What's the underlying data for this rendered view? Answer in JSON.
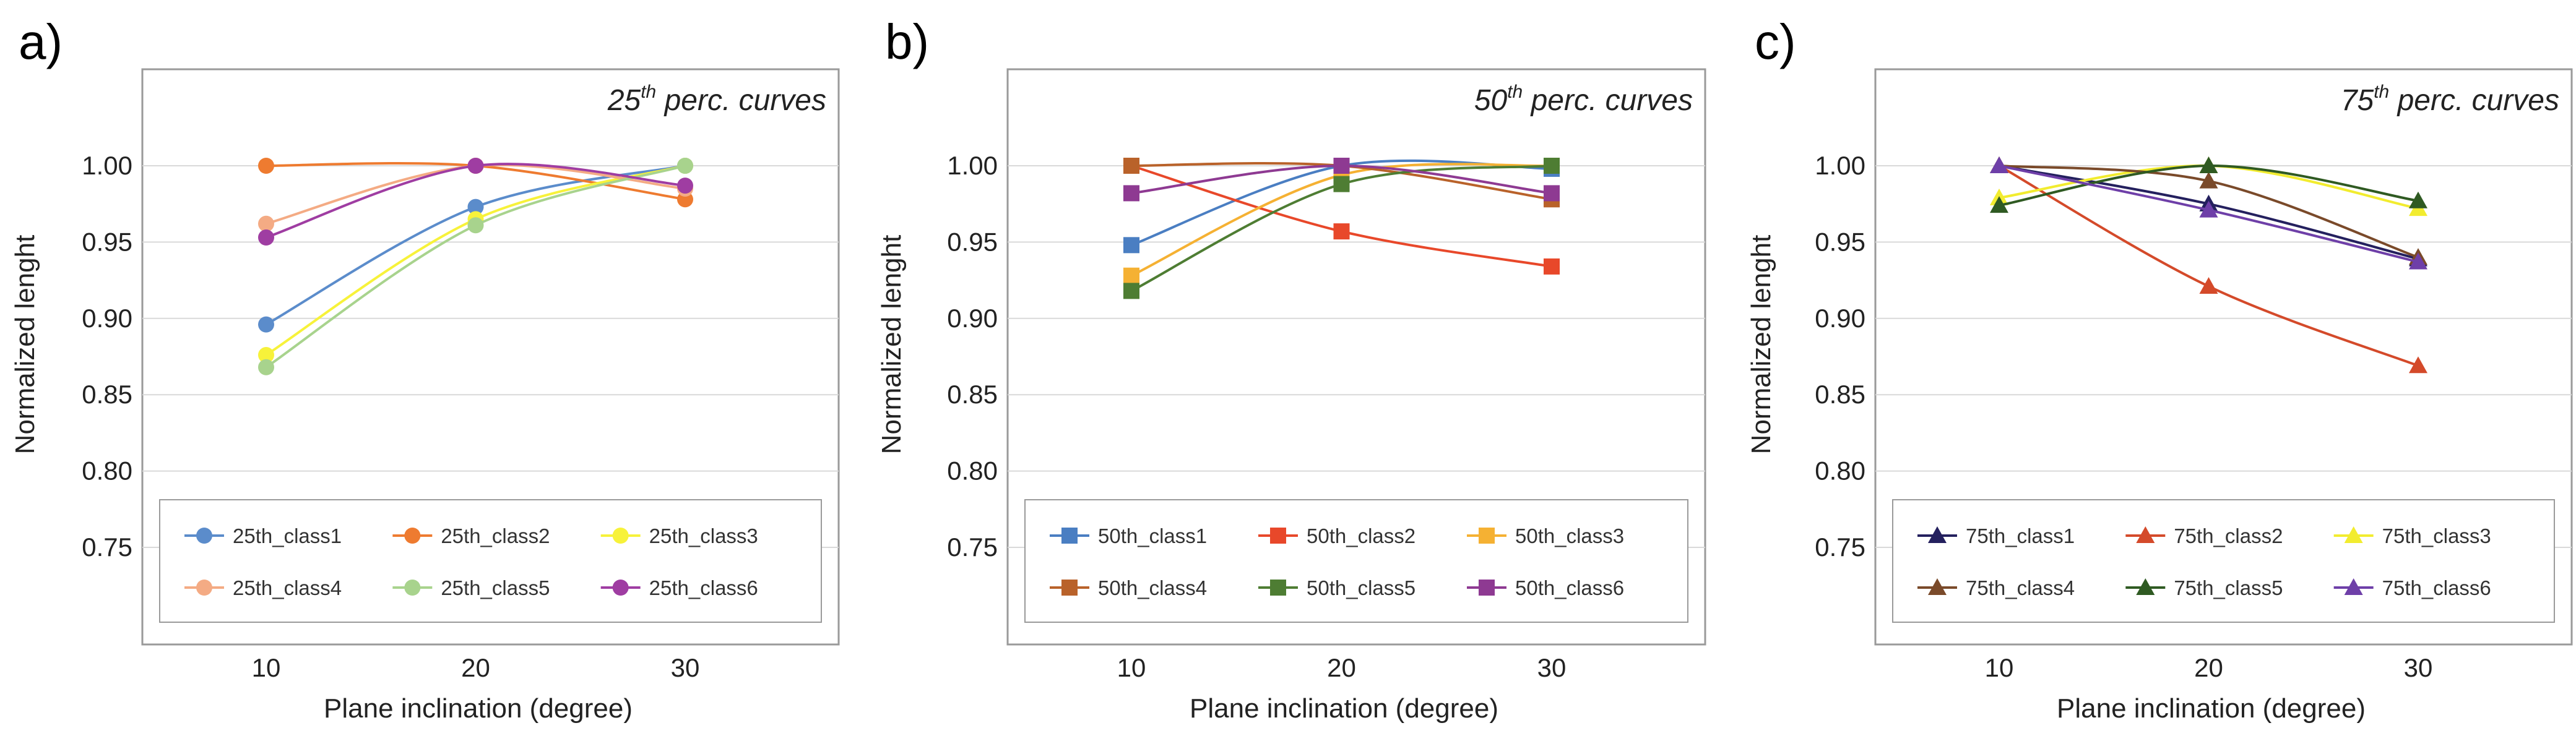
{
  "chart_data": [
    {
      "type": "line",
      "panel_label": "a)",
      "title_prefix": "25",
      "title_sup": "th",
      "title_suffix": " perc. curves",
      "xlabel": "Plane inclination (degree)",
      "ylabel": "Normalized lenght",
      "x": [
        10,
        20,
        30
      ],
      "x_ticks": [
        "10",
        "20",
        "30"
      ],
      "ylim": [
        0.75,
        1.04
      ],
      "y_ticks": [
        "0.75",
        "0.80",
        "0.85",
        "0.90",
        "0.95",
        "1.00"
      ],
      "grid": true,
      "legend_position": "bottom",
      "marker": "circle",
      "series": [
        {
          "name": "25th_class1",
          "color": "#5b8ccb",
          "values": [
            0.896,
            0.973,
            1.0
          ]
        },
        {
          "name": "25th_class2",
          "color": "#ee7b30",
          "values": [
            1.0,
            1.0,
            0.978
          ]
        },
        {
          "name": "25th_class3",
          "color": "#f7f23a",
          "values": [
            0.876,
            0.965,
            1.0
          ]
        },
        {
          "name": "25th_class4",
          "color": "#f4ab84",
          "values": [
            0.962,
            1.0,
            0.985
          ]
        },
        {
          "name": "25th_class5",
          "color": "#a8d38d",
          "values": [
            0.868,
            0.961,
            1.0
          ]
        },
        {
          "name": "25th_class6",
          "color": "#9f3da2",
          "values": [
            0.953,
            1.0,
            0.987
          ]
        }
      ]
    },
    {
      "type": "line",
      "panel_label": "b)",
      "title_prefix": "50",
      "title_sup": "th",
      "title_suffix": " perc. curves",
      "xlabel": "Plane inclination (degree)",
      "ylabel": "Normalized lenght",
      "x": [
        10,
        20,
        30
      ],
      "x_ticks": [
        "10",
        "20",
        "30"
      ],
      "ylim": [
        0.75,
        1.04
      ],
      "y_ticks": [
        "0.75",
        "0.80",
        "0.85",
        "0.90",
        "0.95",
        "1.00"
      ],
      "grid": true,
      "legend_position": "bottom",
      "marker": "square",
      "series": [
        {
          "name": "50th_class1",
          "color": "#4a7ec2",
          "values": [
            0.948,
            1.0,
            0.998
          ]
        },
        {
          "name": "50th_class2",
          "color": "#e8482a",
          "values": [
            1.0,
            0.957,
            0.934
          ]
        },
        {
          "name": "50th_class3",
          "color": "#f5b133",
          "values": [
            0.928,
            0.994,
            1.0
          ]
        },
        {
          "name": "50th_class4",
          "color": "#b9622a",
          "values": [
            1.0,
            1.0,
            0.978
          ]
        },
        {
          "name": "50th_class5",
          "color": "#4e7d33",
          "values": [
            0.918,
            0.988,
            1.0
          ]
        },
        {
          "name": "50th_class6",
          "color": "#8e3a92",
          "values": [
            0.982,
            1.0,
            0.982
          ]
        }
      ]
    },
    {
      "type": "line",
      "panel_label": "c)",
      "title_prefix": "75",
      "title_sup": "th",
      "title_suffix": " perc. curves",
      "xlabel": "Plane inclination (degree)",
      "ylabel": "Normalized lenght",
      "x": [
        10,
        20,
        30
      ],
      "x_ticks": [
        "10",
        "20",
        "30"
      ],
      "ylim": [
        0.75,
        1.04
      ],
      "y_ticks": [
        "0.75",
        "0.80",
        "0.85",
        "0.90",
        "0.95",
        "1.00"
      ],
      "grid": true,
      "legend_position": "bottom",
      "marker": "triangle",
      "series": [
        {
          "name": "75th_class1",
          "color": "#24205e",
          "values": [
            1.0,
            0.975,
            0.939
          ]
        },
        {
          "name": "75th_class2",
          "color": "#d44a2a",
          "values": [
            1.0,
            0.921,
            0.869
          ]
        },
        {
          "name": "75th_class3",
          "color": "#f2ec2f",
          "values": [
            0.979,
            1.0,
            0.972
          ]
        },
        {
          "name": "75th_class4",
          "color": "#7a4a2a",
          "values": [
            1.0,
            0.99,
            0.94
          ]
        },
        {
          "name": "75th_class5",
          "color": "#2f5a22",
          "values": [
            0.974,
            1.0,
            0.977
          ]
        },
        {
          "name": "75th_class6",
          "color": "#6e3fa8",
          "values": [
            1.0,
            0.971,
            0.937
          ]
        }
      ]
    }
  ]
}
